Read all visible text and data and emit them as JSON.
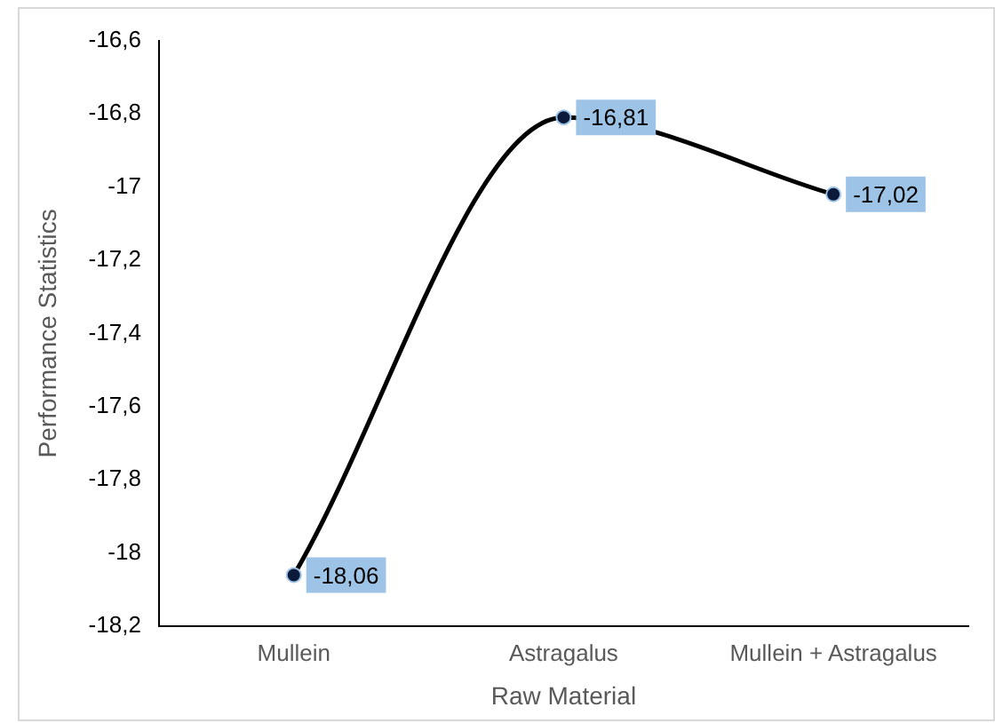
{
  "chart_data": {
    "type": "line",
    "xlabel": "Raw Material",
    "ylabel": "Performance Statistics",
    "categories": [
      "Mullein",
      "Astragalus",
      "Mullein + Astragalus"
    ],
    "series": [
      {
        "color": "#000000",
        "values": [
          -18.06,
          -16.81,
          -17.02
        ],
        "value_labels": [
          "-18,06",
          "-16,81",
          "-17,02"
        ]
      }
    ],
    "ylim": [
      -18.2,
      -16.6
    ],
    "yticks": [
      {
        "value": -18.2,
        "label": "-18,2"
      },
      -18,
      {
        "value": -17.8,
        "label": "-17,8"
      },
      {
        "value": -17.6,
        "label": "-17,6"
      },
      {
        "value": -17.4,
        "label": "-17,4"
      },
      {
        "value": -17.2,
        "label": "-17,2"
      },
      -17,
      {
        "value": -16.8,
        "label": "-16,8"
      },
      {
        "value": -16.6,
        "label": "-16,6"
      }
    ],
    "grid": false,
    "legend": false,
    "marker": "circle",
    "line_style": "solid"
  }
}
